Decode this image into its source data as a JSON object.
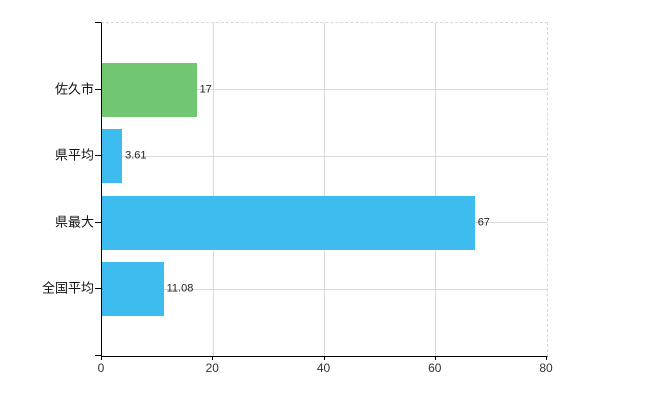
{
  "chart_data": {
    "type": "bar",
    "orientation": "horizontal",
    "title": "",
    "categories": [
      "佐久市",
      "県平均",
      "県最大",
      "全国平均"
    ],
    "values": [
      17,
      3.61,
      67,
      11.08
    ],
    "value_labels": [
      "17",
      "3.61",
      "67",
      "11.08"
    ],
    "bar_colors": [
      "#71c771",
      "#3fbcef",
      "#3fbcef",
      "#3fbcef"
    ],
    "xlabel": "",
    "ylabel": "",
    "xlim": [
      0,
      80
    ],
    "x_ticks": [
      0,
      20,
      40,
      60,
      80
    ],
    "x_tick_labels": [
      "0",
      "20",
      "40",
      "60",
      "80"
    ],
    "grid": true,
    "legend": false,
    "colors": {
      "green_bar": "#71c771",
      "blue_bar": "#3fbcef",
      "gridline": "#d9d9d9",
      "axis": "#000000",
      "tick_text": "#333333",
      "category_text": "#111111",
      "value_text": "#222222",
      "background": "#ffffff"
    }
  }
}
